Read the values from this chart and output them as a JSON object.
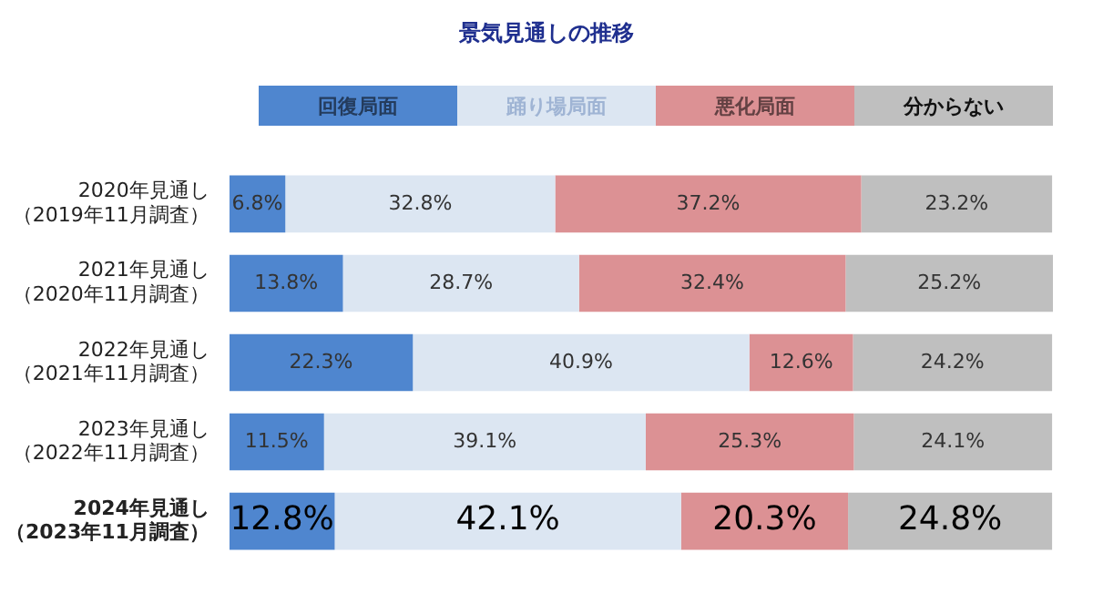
{
  "chart_data": {
    "type": "bar",
    "orientation": "horizontal",
    "stacked": true,
    "title": "景気見通しの推移",
    "categories": [
      "2020年見通し（2019年11月調査）",
      "2021年見通し（2020年11月調査）",
      "2022年見通し（2021年11月調査）",
      "2023年見通し（2022年11月調査）",
      "2024年見通し（2023年11月調査）"
    ],
    "series": [
      {
        "name": "回復局面",
        "color": "#4f86cf",
        "values": [
          6.8,
          13.8,
          22.3,
          11.5,
          12.8
        ],
        "value_labels": [
          "6.8%",
          "13.8%",
          "22.3%",
          "11.5%",
          "12.8%"
        ]
      },
      {
        "name": "踊り場局面",
        "color": "#dce6f2",
        "values": [
          32.8,
          28.7,
          40.9,
          39.1,
          42.1
        ],
        "value_labels": [
          "32.8%",
          "28.7%",
          "40.9%",
          "39.1%",
          "42.1%"
        ]
      },
      {
        "name": "悪化局面",
        "color": "#dc9194",
        "values": [
          37.2,
          32.4,
          12.6,
          25.3,
          20.3
        ],
        "value_labels": [
          "37.2%",
          "32.4%",
          "12.6%",
          "25.3%",
          "20.3%"
        ]
      },
      {
        "name": "分からない",
        "color": "#bfbfbf",
        "values": [
          23.2,
          25.2,
          24.2,
          24.1,
          24.8
        ],
        "value_labels": [
          "23.2%",
          "25.2%",
          "24.2%",
          "24.1%",
          "24.8%"
        ]
      }
    ],
    "tick_labels": "y",
    "legend": "top"
  }
}
